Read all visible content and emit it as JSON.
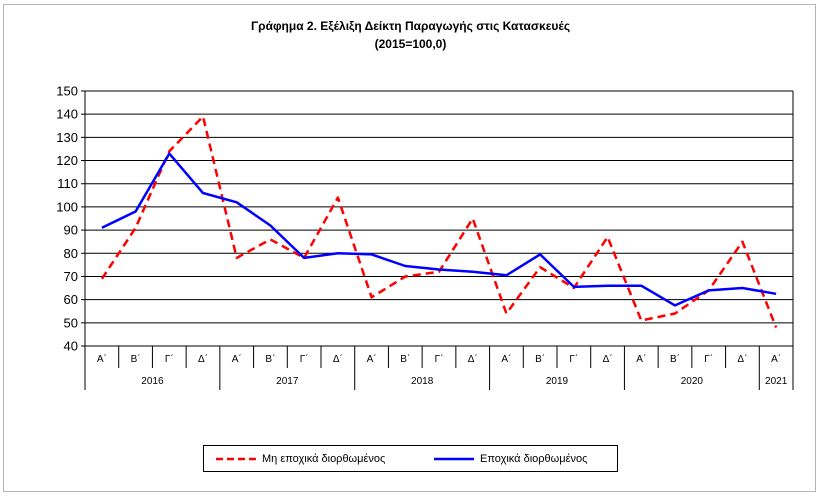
{
  "title": "Γράφημα 2. Εξέλιξη  Δείκτη  Παραγωγής  στις Κατασκευές",
  "subtitle": "(2015=100,0)",
  "colors": {
    "unadjusted": "#ff0000",
    "adjusted": "#0000ff",
    "grid": "#000000"
  },
  "chart_data": {
    "type": "line",
    "title": "Γράφημα 2. Εξέλιξη  Δείκτη  Παραγωγής  στις Κατασκευές",
    "subtitle": "(2015=100,0)",
    "ylim": [
      40,
      150
    ],
    "yticks": [
      40,
      50,
      60,
      70,
      80,
      90,
      100,
      110,
      120,
      130,
      140,
      150
    ],
    "grid": "horizontal",
    "legend_position": "bottom",
    "categories": [
      "Α΄",
      "Β΄",
      "Γ΄",
      "Δ΄",
      "Α΄",
      "Β΄",
      "Γ΄",
      "Δ΄",
      "Α΄",
      "Β΄",
      "Γ΄",
      "Δ΄",
      "Α΄",
      "Β΄",
      "Γ΄",
      "Δ΄",
      "Α΄",
      "Β΄",
      "Γ΄",
      "Δ΄",
      "Α΄"
    ],
    "years": [
      {
        "label": "2016",
        "quarters": 4
      },
      {
        "label": "2017",
        "quarters": 4
      },
      {
        "label": "2018",
        "quarters": 4
      },
      {
        "label": "2019",
        "quarters": 4
      },
      {
        "label": "2020",
        "quarters": 4
      },
      {
        "label": "2021",
        "quarters": 1
      }
    ],
    "series": [
      {
        "name": "Μη εποχικά διορθωμένος",
        "style": "dashed",
        "color": "#ff0000",
        "values": [
          69,
          91,
          124,
          139,
          78,
          86,
          78,
          104,
          61,
          70,
          72,
          95,
          54,
          74,
          65,
          87,
          51,
          54,
          64,
          85,
          48
        ]
      },
      {
        "name": "Εποχικά διορθωμένος",
        "style": "solid",
        "color": "#0000ff",
        "values": [
          91,
          98,
          123,
          106,
          102,
          92,
          78,
          80,
          79.5,
          74.5,
          73,
          72,
          70.5,
          79.5,
          65.5,
          66,
          66,
          57.5,
          64,
          65,
          62.5
        ]
      }
    ]
  }
}
